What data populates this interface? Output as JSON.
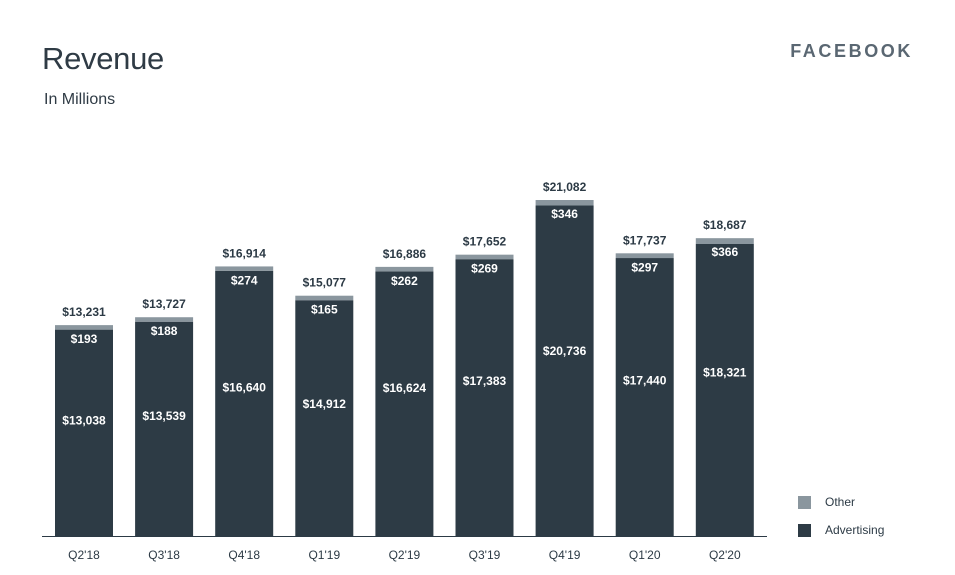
{
  "header": {
    "title": "Revenue",
    "subtitle": "In Millions",
    "brand": "FACEBOOK"
  },
  "colors": {
    "advertising": "#2d3b45",
    "other": "#8a969e",
    "text_dark": "#2c3a45",
    "label_light": "#ffffff"
  },
  "legend": {
    "items": [
      {
        "label": "Other",
        "color": "#8a969e"
      },
      {
        "label": "Advertising",
        "color": "#2d3b45"
      }
    ]
  },
  "chart_data": {
    "type": "bar",
    "stacked": true,
    "title": "Revenue",
    "subtitle": "In Millions",
    "categories": [
      "Q2'18",
      "Q3'18",
      "Q4'18",
      "Q1'19",
      "Q2'19",
      "Q3'19",
      "Q4'19",
      "Q1'20",
      "Q2'20"
    ],
    "series": [
      {
        "name": "Advertising",
        "values": [
          13038,
          13539,
          16640,
          14912,
          16624,
          17383,
          20736,
          17440,
          18321
        ],
        "labels": [
          "$13,038",
          "$13,539",
          "$16,640",
          "$14,912",
          "$16,624",
          "$17,383",
          "$20,736",
          "$17,440",
          "$18,321"
        ]
      },
      {
        "name": "Other",
        "values": [
          193,
          188,
          274,
          165,
          262,
          269,
          346,
          297,
          366
        ],
        "labels": [
          "$193",
          "$188",
          "$274",
          "$165",
          "$262",
          "$269",
          "$346",
          "$297",
          "$366"
        ]
      }
    ],
    "totals": [
      13231,
      13727,
      16914,
      15077,
      16886,
      17652,
      21082,
      17737,
      18687
    ],
    "total_labels": [
      "$13,231",
      "$13,727",
      "$16,914",
      "$15,077",
      "$16,886",
      "$17,652",
      "$21,082",
      "$17,737",
      "$18,687"
    ],
    "ylim": [
      0,
      21082
    ],
    "grid": false,
    "legend_position": "bottom-right"
  }
}
